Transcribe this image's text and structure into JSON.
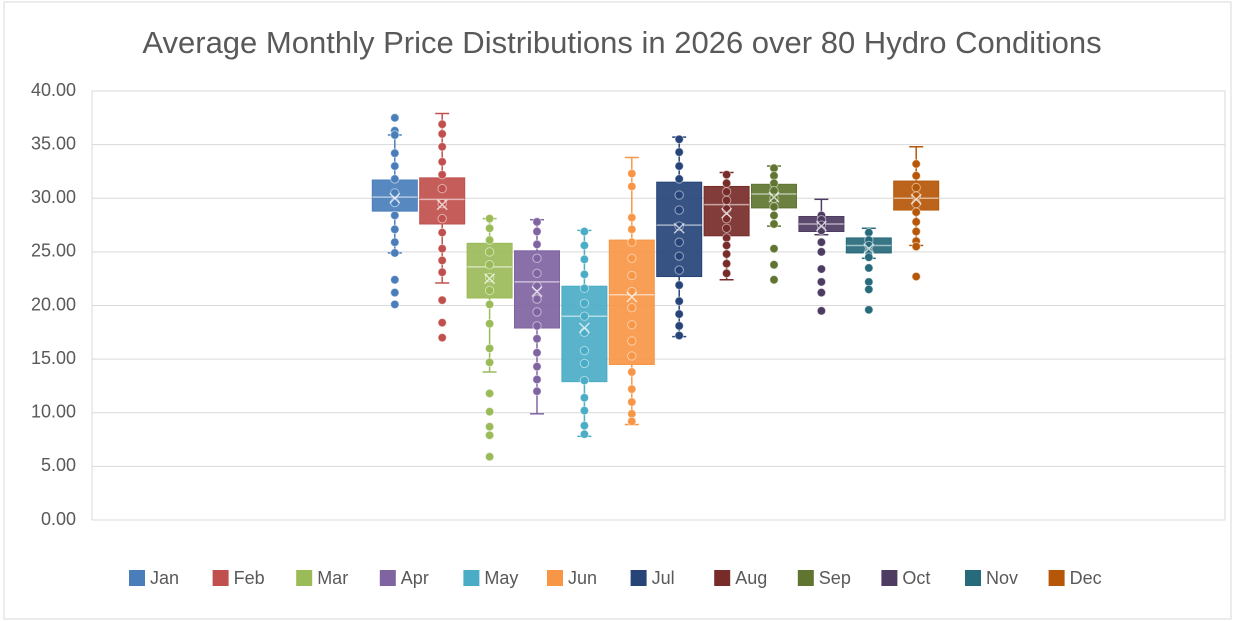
{
  "chart_data": {
    "type": "box",
    "title": "Average Monthly Price Distributions in 2026 over 80 Hydro Conditions",
    "ylim": [
      0,
      40
    ],
    "yticks": [
      {
        "value": 0,
        "label": "0.00"
      },
      {
        "value": 5,
        "label": "5.00"
      },
      {
        "value": 10,
        "label": "10.00"
      },
      {
        "value": 15,
        "label": "15.00"
      },
      {
        "value": 20,
        "label": "20.00"
      },
      {
        "value": 25,
        "label": "25.00"
      },
      {
        "value": 30,
        "label": "30.00"
      },
      {
        "value": 35,
        "label": "35.00"
      },
      {
        "value": 40,
        "label": "40.00"
      }
    ],
    "grid": true,
    "legend": "bottom",
    "series": [
      {
        "name": "Jan",
        "color": "#4a7ebb",
        "min": 24.9,
        "q1": 28.8,
        "median": 30.1,
        "q3": 31.7,
        "max": 35.9,
        "mean": 30.0,
        "points": [
          37.5,
          36.3,
          35.9,
          34.2,
          33.0,
          31.8,
          30.5,
          29.6,
          28.4,
          27.1,
          25.9,
          24.9,
          22.4,
          21.2,
          20.1
        ]
      },
      {
        "name": "Feb",
        "color": "#c0504d",
        "min": 22.1,
        "q1": 27.6,
        "median": 29.9,
        "q3": 31.9,
        "max": 37.9,
        "mean": 29.4,
        "points": [
          36.9,
          36.0,
          34.8,
          33.4,
          32.2,
          30.9,
          29.5,
          28.1,
          26.8,
          25.3,
          24.2,
          23.1,
          20.5,
          18.4,
          17.0
        ]
      },
      {
        "name": "Mar",
        "color": "#9bbb59",
        "min": 13.8,
        "q1": 20.7,
        "median": 23.6,
        "q3": 25.8,
        "max": 28.1,
        "mean": 22.5,
        "points": [
          28.1,
          27.2,
          26.1,
          25.0,
          23.8,
          22.6,
          21.4,
          20.1,
          18.3,
          16.0,
          14.7,
          11.8,
          10.1,
          8.7,
          7.9,
          5.9
        ]
      },
      {
        "name": "Apr",
        "color": "#8064a2",
        "min": 9.9,
        "q1": 17.9,
        "median": 22.2,
        "q3": 25.1,
        "max": 28.0,
        "mean": 21.3,
        "points": [
          27.8,
          26.9,
          25.7,
          24.4,
          23.0,
          21.8,
          20.6,
          19.4,
          18.1,
          16.9,
          15.6,
          14.3,
          13.1,
          12.0
        ]
      },
      {
        "name": "May",
        "color": "#4bacc6",
        "min": 7.8,
        "q1": 12.9,
        "median": 19.0,
        "q3": 21.8,
        "max": 27.0,
        "mean": 17.9,
        "points": [
          26.9,
          25.6,
          24.3,
          22.9,
          21.6,
          20.2,
          19.0,
          17.5,
          15.8,
          14.6,
          13.0,
          11.4,
          10.2,
          8.8,
          8.0
        ]
      },
      {
        "name": "Jun",
        "color": "#f79646",
        "min": 8.9,
        "q1": 14.5,
        "median": 21.0,
        "q3": 26.1,
        "max": 33.8,
        "mean": 20.8,
        "points": [
          32.3,
          31.1,
          28.2,
          27.1,
          25.9,
          24.4,
          22.8,
          21.3,
          19.8,
          18.2,
          16.7,
          15.3,
          13.8,
          12.2,
          11.0,
          9.9,
          9.2
        ]
      },
      {
        "name": "Jul",
        "color": "#264478",
        "min": 17.1,
        "q1": 22.7,
        "median": 27.5,
        "q3": 31.5,
        "max": 35.7,
        "mean": 27.2,
        "points": [
          35.5,
          34.3,
          33.0,
          31.8,
          30.3,
          28.9,
          27.4,
          25.9,
          24.6,
          23.3,
          21.9,
          20.4,
          19.2,
          18.1,
          17.2
        ]
      },
      {
        "name": "Aug",
        "color": "#772c2a",
        "min": 22.4,
        "q1": 26.5,
        "median": 29.4,
        "q3": 31.1,
        "max": 32.4,
        "mean": 28.6,
        "points": [
          32.2,
          31.4,
          30.6,
          29.8,
          29.0,
          28.1,
          27.2,
          26.3,
          25.6,
          24.8,
          23.9,
          23.0
        ]
      },
      {
        "name": "Sep",
        "color": "#5f7530",
        "min": 27.4,
        "q1": 29.1,
        "median": 30.4,
        "q3": 31.3,
        "max": 33.0,
        "mean": 30.1,
        "points": [
          32.8,
          32.1,
          31.4,
          30.7,
          30.0,
          29.2,
          28.4,
          27.6,
          25.3,
          23.8,
          22.4
        ]
      },
      {
        "name": "Oct",
        "color": "#4d3b62",
        "min": 26.6,
        "q1": 26.9,
        "median": 27.6,
        "q3": 28.3,
        "max": 29.9,
        "mean": 27.4,
        "points": [
          28.4,
          28.0,
          27.5,
          27.0,
          25.9,
          25.0,
          23.4,
          22.2,
          21.2,
          19.5
        ]
      },
      {
        "name": "Nov",
        "color": "#276a7c",
        "min": 24.4,
        "q1": 24.9,
        "median": 25.6,
        "q3": 26.3,
        "max": 27.2,
        "mean": 25.3,
        "points": [
          26.8,
          26.1,
          25.6,
          25.0,
          24.5,
          23.5,
          22.2,
          21.5,
          19.6
        ]
      },
      {
        "name": "Dec",
        "color": "#b65708",
        "min": 25.6,
        "q1": 28.9,
        "median": 30.0,
        "q3": 31.6,
        "max": 34.8,
        "mean": 29.9,
        "points": [
          33.2,
          32.1,
          31.0,
          30.2,
          29.5,
          28.7,
          27.8,
          26.9,
          26.0,
          25.5,
          22.7
        ]
      }
    ]
  }
}
